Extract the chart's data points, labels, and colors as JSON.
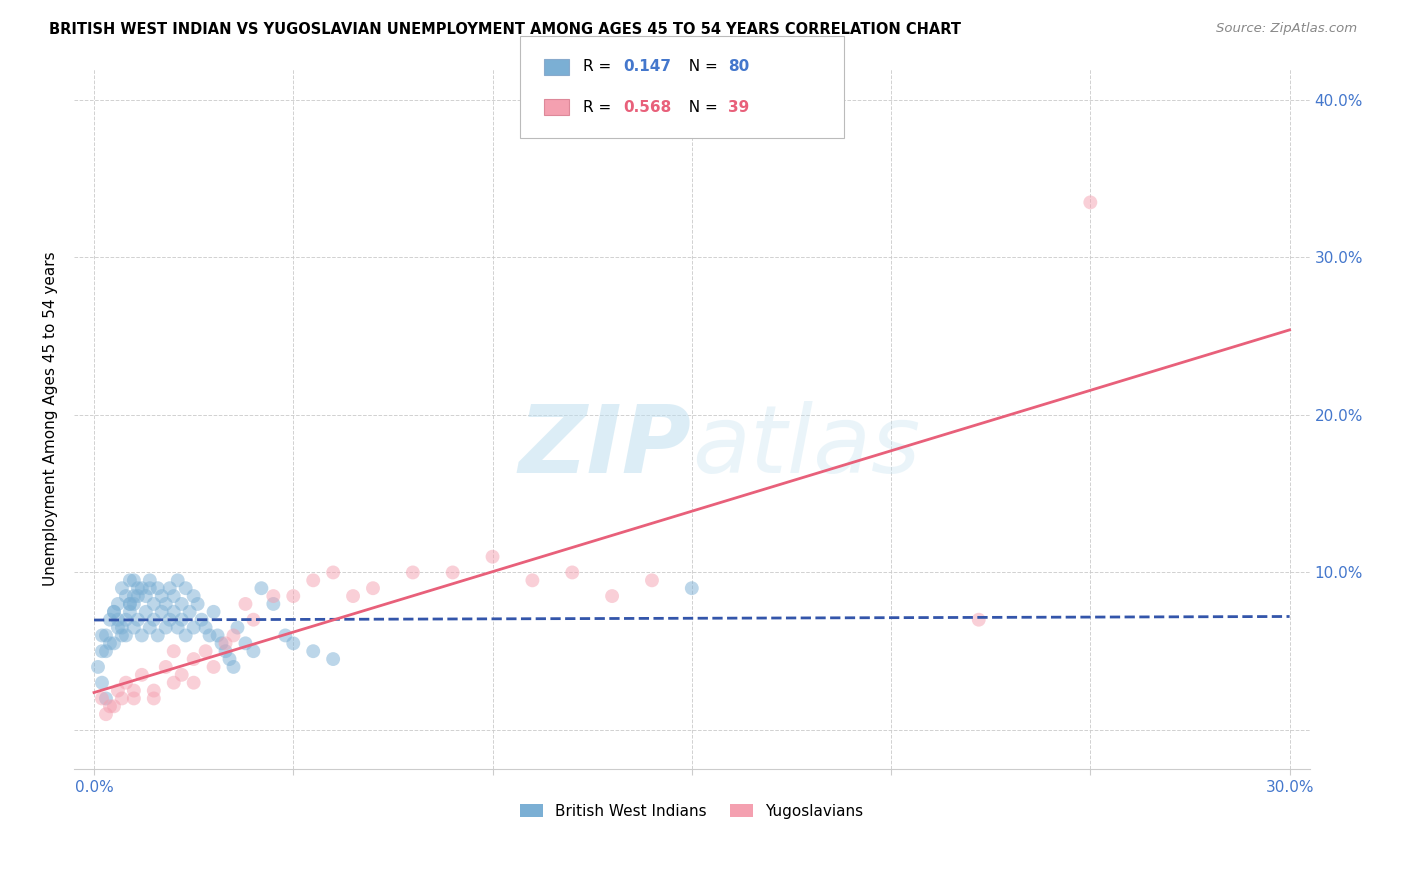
{
  "title": "BRITISH WEST INDIAN VS YUGOSLAVIAN UNEMPLOYMENT AMONG AGES 45 TO 54 YEARS CORRELATION CHART",
  "source": "Source: ZipAtlas.com",
  "ylabel": "Unemployment Among Ages 45 to 54 years",
  "blue_R": 0.147,
  "blue_N": 80,
  "pink_R": 0.568,
  "pink_N": 39,
  "blue_color": "#7BAFD4",
  "pink_color": "#F4A0B0",
  "blue_line_color": "#3355AA",
  "pink_line_color": "#E8607A",
  "legend_labels": [
    "British West Indians",
    "Yugoslavians"
  ],
  "blue_scatter_x": [
    0.002,
    0.003,
    0.004,
    0.005,
    0.005,
    0.006,
    0.006,
    0.007,
    0.007,
    0.008,
    0.008,
    0.009,
    0.009,
    0.01,
    0.01,
    0.01,
    0.011,
    0.011,
    0.012,
    0.012,
    0.013,
    0.013,
    0.014,
    0.014,
    0.015,
    0.015,
    0.016,
    0.016,
    0.017,
    0.017,
    0.018,
    0.018,
    0.019,
    0.019,
    0.02,
    0.02,
    0.021,
    0.021,
    0.022,
    0.022,
    0.023,
    0.023,
    0.024,
    0.025,
    0.025,
    0.026,
    0.027,
    0.028,
    0.029,
    0.03,
    0.031,
    0.032,
    0.033,
    0.034,
    0.035,
    0.036,
    0.038,
    0.04,
    0.042,
    0.045,
    0.048,
    0.05,
    0.055,
    0.06,
    0.002,
    0.003,
    0.004,
    0.005,
    0.006,
    0.007,
    0.008,
    0.009,
    0.01,
    0.011,
    0.001,
    0.002,
    0.003,
    0.009,
    0.014,
    0.15
  ],
  "blue_scatter_y": [
    0.06,
    0.05,
    0.07,
    0.055,
    0.075,
    0.065,
    0.08,
    0.06,
    0.09,
    0.07,
    0.085,
    0.075,
    0.095,
    0.065,
    0.08,
    0.095,
    0.07,
    0.085,
    0.06,
    0.09,
    0.075,
    0.085,
    0.065,
    0.095,
    0.07,
    0.08,
    0.06,
    0.09,
    0.075,
    0.085,
    0.065,
    0.08,
    0.07,
    0.09,
    0.075,
    0.085,
    0.065,
    0.095,
    0.07,
    0.08,
    0.06,
    0.09,
    0.075,
    0.085,
    0.065,
    0.08,
    0.07,
    0.065,
    0.06,
    0.075,
    0.06,
    0.055,
    0.05,
    0.045,
    0.04,
    0.065,
    0.055,
    0.05,
    0.09,
    0.08,
    0.06,
    0.055,
    0.05,
    0.045,
    0.05,
    0.06,
    0.055,
    0.075,
    0.07,
    0.065,
    0.06,
    0.08,
    0.085,
    0.09,
    0.04,
    0.03,
    0.02,
    0.08,
    0.09,
    0.09
  ],
  "pink_scatter_x": [
    0.002,
    0.004,
    0.006,
    0.008,
    0.01,
    0.012,
    0.015,
    0.018,
    0.02,
    0.022,
    0.025,
    0.028,
    0.03,
    0.033,
    0.035,
    0.038,
    0.04,
    0.045,
    0.05,
    0.055,
    0.06,
    0.065,
    0.07,
    0.08,
    0.09,
    0.1,
    0.11,
    0.12,
    0.13,
    0.14,
    0.003,
    0.005,
    0.007,
    0.01,
    0.015,
    0.02,
    0.025,
    0.222,
    0.25
  ],
  "pink_scatter_y": [
    0.02,
    0.015,
    0.025,
    0.03,
    0.02,
    0.035,
    0.025,
    0.04,
    0.03,
    0.035,
    0.045,
    0.05,
    0.04,
    0.055,
    0.06,
    0.08,
    0.07,
    0.085,
    0.085,
    0.095,
    0.1,
    0.085,
    0.09,
    0.1,
    0.1,
    0.11,
    0.095,
    0.1,
    0.085,
    0.095,
    0.01,
    0.015,
    0.02,
    0.025,
    0.02,
    0.05,
    0.03,
    0.07,
    0.335
  ],
  "xlim": [
    -0.005,
    0.305
  ],
  "ylim": [
    -0.025,
    0.42
  ],
  "xticks": [
    0.0,
    0.05,
    0.1,
    0.15,
    0.2,
    0.25,
    0.3
  ],
  "yticks": [
    0.0,
    0.1,
    0.2,
    0.3,
    0.4
  ]
}
